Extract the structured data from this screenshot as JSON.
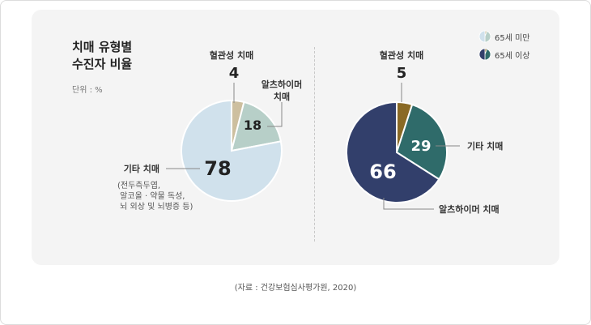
{
  "title": "치매 유형별\n수진자 비율",
  "unit": "단위 : %",
  "legend": [
    {
      "label": "65세 미만",
      "colors": [
        "#d0e1ec",
        "#b7cfc8",
        "#cdbf9f"
      ]
    },
    {
      "label": "65세 이상",
      "colors": [
        "#323f6b",
        "#2f6b6a",
        "#8a6a25"
      ]
    }
  ],
  "chart_data": [
    {
      "type": "pie",
      "name": "65세 미만",
      "slices": [
        {
          "label": "혈관성 치매",
          "value": 4,
          "color": "#cdbf9f"
        },
        {
          "label": "알츠하이머\n치매",
          "value": 18,
          "color": "#b7cfc8"
        },
        {
          "label": "기타 치매",
          "note": "(전두측두엽,\n 알코올 · 약물 독성,\n 뇌 외상 및 뇌병증 등)",
          "value": 78,
          "color": "#d0e1ec"
        }
      ]
    },
    {
      "type": "pie",
      "name": "65세 이상",
      "slices": [
        {
          "label": "혈관성 치매",
          "value": 5,
          "color": "#8a6a25"
        },
        {
          "label": "기타 치매",
          "value": 29,
          "color": "#2f6b6a"
        },
        {
          "label": "알츠하이머 치매",
          "value": 66,
          "color": "#323f6b"
        }
      ]
    }
  ],
  "source": "(자료 : 건강보험심사평가원, 2020)"
}
